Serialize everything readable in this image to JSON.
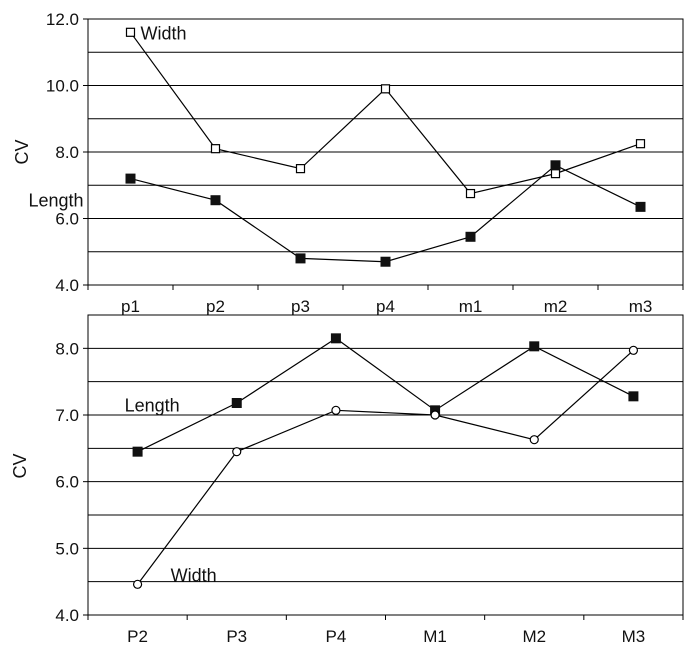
{
  "chart_data": [
    {
      "type": "line",
      "ylabel": "CV",
      "ylim": [
        4.0,
        12.0
      ],
      "yticks": [
        "4.0",
        "6.0",
        "8.0",
        "10.0",
        "12.0"
      ],
      "grid": true,
      "categories": [
        "p1",
        "p2",
        "p3",
        "p4",
        "m1",
        "m2",
        "m3"
      ],
      "series": [
        {
          "name": "Width",
          "marker": "open-square",
          "values": [
            11.6,
            8.1,
            7.5,
            9.9,
            6.75,
            7.35,
            8.25
          ]
        },
        {
          "name": "Length",
          "marker": "filled-square",
          "values": [
            7.2,
            6.55,
            4.8,
            4.7,
            5.45,
            7.6,
            6.35
          ]
        }
      ]
    },
    {
      "type": "line",
      "ylabel": "CV",
      "ylim": [
        4.0,
        8.5
      ],
      "yticks": [
        "4.0",
        "5.0",
        "6.0",
        "7.0",
        "8.0"
      ],
      "grid": true,
      "categories": [
        "P2",
        "P3",
        "P4",
        "M1",
        "M2",
        "M3"
      ],
      "series": [
        {
          "name": "Length",
          "marker": "filled-square",
          "values": [
            6.45,
            7.18,
            8.15,
            7.07,
            8.03,
            7.28
          ]
        },
        {
          "name": "Width",
          "marker": "open-circle",
          "values": [
            4.46,
            6.45,
            7.07,
            7.0,
            6.63,
            7.97
          ]
        }
      ]
    }
  ]
}
